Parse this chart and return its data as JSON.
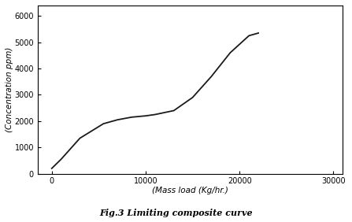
{
  "x": [
    0,
    1000,
    3000,
    5500,
    7000,
    8500,
    10000,
    11000,
    13000,
    15000,
    17000,
    19000,
    21000,
    22000
  ],
  "y": [
    200,
    550,
    1350,
    1900,
    2050,
    2150,
    2200,
    2250,
    2400,
    2900,
    3700,
    4600,
    5250,
    5350
  ],
  "xlabel": "(Mass load (Kg/hr.)",
  "ylabel": "(Concentration ppm)",
  "title": "Fig.3 Limiting composite curve",
  "xlim": [
    -1500,
    31000
  ],
  "ylim": [
    0,
    6400
  ],
  "xticks": [
    0,
    10000,
    20000,
    30000
  ],
  "xtick_labels": [
    "0",
    "10000",
    "20000",
    "30000"
  ],
  "yticks": [
    0,
    1000,
    2000,
    3000,
    4000,
    5000,
    6000
  ],
  "line_color": "#1a1a1a",
  "line_width": 1.3,
  "bg_color": "#ffffff",
  "title_fontsize": 8,
  "label_fontsize": 7.5,
  "tick_fontsize": 7
}
